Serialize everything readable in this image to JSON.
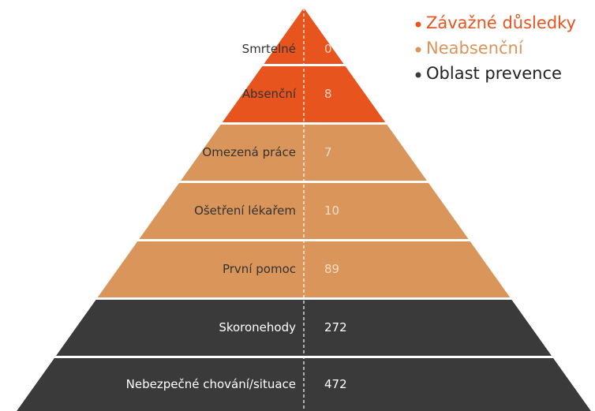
{
  "groups": [
    {
      "name": "Závažné důsledky",
      "color": "#e8541e",
      "text_color": "#333333",
      "value_color": "#fbd3c0",
      "levels": [
        {
          "label": "Smrtelné",
          "value": 0
        },
        {
          "label": "Absenční",
          "value": 8
        }
      ]
    },
    {
      "name": "Neabsenční",
      "color": "#d9955a",
      "text_color": "#333333",
      "value_color": "#f6dcc4",
      "levels": [
        {
          "label": "Omezená práce",
          "value": 7
        },
        {
          "label": "Ošetření lékařem",
          "value": 10
        },
        {
          "label": "První pomoc",
          "value": 89
        }
      ]
    },
    {
      "name": "Oblast prevence",
      "color": "#3a3a3a",
      "text_color": "#ffffff",
      "value_color": "#ffffff",
      "levels": [
        {
          "label": "Skoronehody",
          "value": 272
        },
        {
          "label": "Nebezpečné chování/situace",
          "value": 472
        }
      ]
    }
  ]
}
